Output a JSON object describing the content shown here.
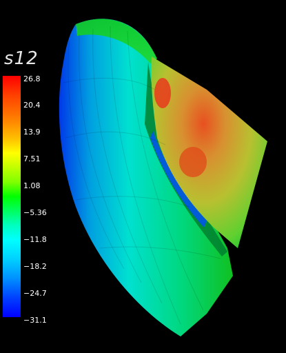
{
  "legend": {
    "title": "s12",
    "ticks": [
      "26.8",
      "20.4",
      "13.9",
      "7.51",
      "1.08",
      "−5.36",
      "−11.8",
      "−18.2",
      "−24.7",
      "−31.1"
    ]
  },
  "colors": {
    "background": "#000000",
    "outer_shell": "#00cc44",
    "inner_shell": "#00d8d0",
    "cut_face": "#a8c030",
    "hot_spot": "#e04020",
    "cold_edge": "#0040ff"
  }
}
